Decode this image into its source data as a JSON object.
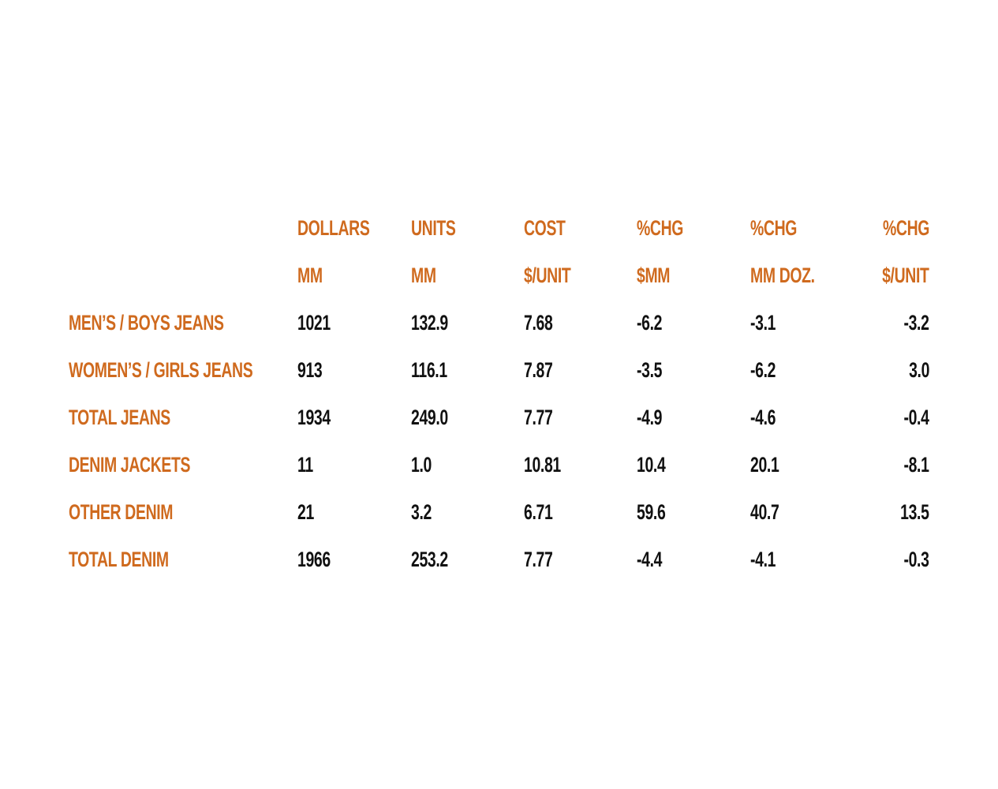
{
  "table": {
    "header": [
      [
        "DOLLARS",
        "UNITS",
        "COST",
        "%CHG",
        "%CHG",
        "%CHG"
      ],
      [
        "MM",
        "MM",
        "$/UNIT",
        "$MM",
        "MM DOZ.",
        "$/UNIT"
      ]
    ],
    "rows": [
      [
        "MEN’S / BOYS JEANS",
        "1021",
        "132.9",
        "7.68",
        "-6.2",
        "-3.1",
        "-3.2"
      ],
      [
        "WOMEN’S / GIRLS JEANS",
        "913",
        "116.1",
        "7.87",
        "-3.5",
        "-6.2",
        "3.0"
      ],
      [
        "TOTAL JEANS",
        "1934",
        "249.0",
        "7.77",
        "-4.9",
        "-4.6",
        "-0.4"
      ],
      [
        "DENIM JACKETS",
        "11",
        "1.0",
        "10.81",
        "10.4",
        "20.1",
        "-8.1"
      ],
      [
        "OTHER DENIM",
        "21",
        "3.2",
        "6.71",
        "59.6",
        "40.7",
        "13.5"
      ],
      [
        "TOTAL DENIM",
        "1966",
        "253.2",
        "7.77",
        "-4.4",
        "-4.1",
        "-0.3"
      ]
    ]
  }
}
